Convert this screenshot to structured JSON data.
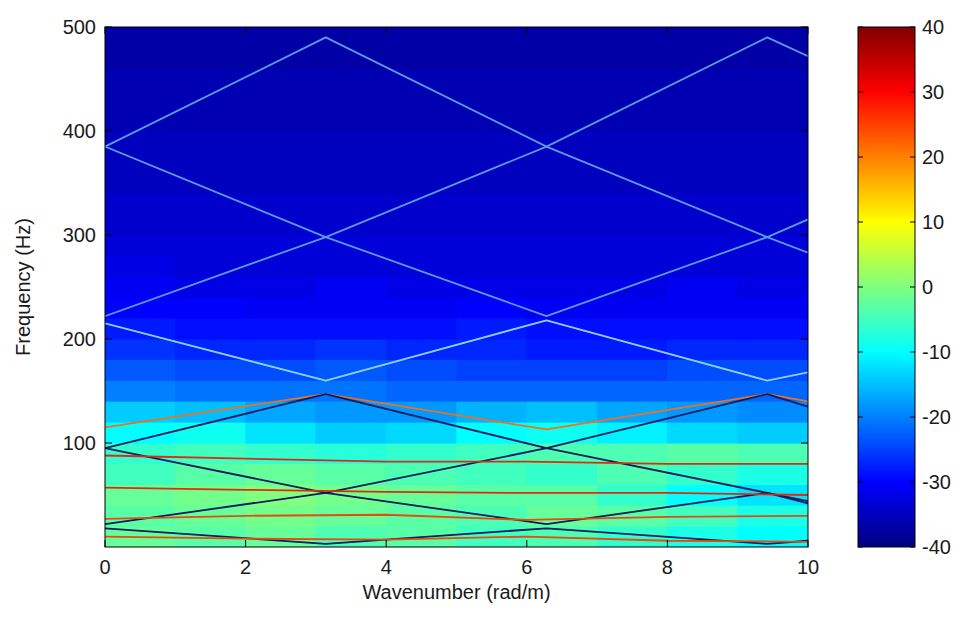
{
  "chart_data": {
    "type": "heatmap",
    "x_label": "Wavenumber (rad/m)",
    "y_label": "Frequency (Hz)",
    "xlim": [
      0,
      10
    ],
    "ylim": [
      0,
      500
    ],
    "xticks": [
      0,
      2,
      4,
      6,
      8,
      10
    ],
    "yticks": [
      100,
      200,
      300,
      400,
      500
    ],
    "cell_x": [
      0,
      1,
      2,
      3,
      4,
      5,
      6,
      7,
      8,
      9,
      10
    ],
    "cell_y": [
      0,
      20,
      40,
      60,
      80,
      100,
      120,
      140,
      160,
      180,
      200,
      220,
      240,
      260,
      280,
      300,
      320,
      340,
      360,
      380,
      400,
      420,
      440,
      460,
      480,
      500
    ],
    "cells": [
      [
        -2,
        -3,
        -2,
        -4,
        -3,
        -5,
        -4,
        -6,
        -8,
        -10
      ],
      [
        -3,
        -2,
        -1,
        -2,
        -3,
        -4,
        -2,
        -3,
        -5,
        -8
      ],
      [
        -2,
        -1,
        0,
        -1,
        -2,
        -3,
        -3,
        -6,
        -10,
        -12
      ],
      [
        -5,
        -3,
        -2,
        -3,
        -4,
        -5,
        -6,
        -4,
        -6,
        -8
      ],
      [
        -6,
        -5,
        -6,
        -7,
        -6,
        -5,
        -4,
        -4,
        -3,
        -4
      ],
      [
        -10,
        -9,
        -12,
        -14,
        -13,
        -10,
        -9,
        -11,
        -13,
        -14
      ],
      [
        -14,
        -15,
        -17,
        -18,
        -18,
        -16,
        -15,
        -17,
        -18,
        -19
      ],
      [
        -20,
        -21,
        -21,
        -21,
        -22,
        -22,
        -22,
        -22,
        -22,
        -22
      ],
      [
        -23,
        -24,
        -24,
        -23,
        -24,
        -25,
        -25,
        -25,
        -24,
        -24
      ],
      [
        -26,
        -27,
        -27,
        -26,
        -27,
        -27,
        -28,
        -28,
        -27,
        -27
      ],
      [
        -28,
        -29,
        -29,
        -29,
        -29,
        -28,
        -29,
        -29,
        -29,
        -29
      ],
      [
        -30,
        -30,
        -31,
        -31,
        -31,
        -30,
        -31,
        -31,
        -31,
        -31
      ],
      [
        -31,
        -32,
        -32,
        -31,
        -32,
        -32,
        -32,
        -32,
        -31,
        -32
      ],
      [
        -32,
        -33,
        -33,
        -33,
        -33,
        -33,
        -33,
        -33,
        -33,
        -33
      ],
      [
        -33,
        -33,
        -33,
        -33,
        -33,
        -33,
        -33,
        -33,
        -33,
        -33
      ],
      [
        -34,
        -34,
        -34,
        -34,
        -34,
        -34,
        -34,
        -34,
        -34,
        -34
      ],
      [
        -34,
        -34,
        -34,
        -34,
        -34,
        -34,
        -34,
        -34,
        -34,
        -34
      ],
      [
        -35,
        -35,
        -35,
        -35,
        -35,
        -35,
        -35,
        -35,
        -35,
        -35
      ],
      [
        -35,
        -35,
        -35,
        -35,
        -35,
        -35,
        -35,
        -35,
        -35,
        -35
      ],
      [
        -35,
        -35,
        -35,
        -35,
        -35,
        -35,
        -35,
        -35,
        -35,
        -35
      ],
      [
        -36,
        -36,
        -36,
        -36,
        -36,
        -36,
        -36,
        -36,
        -36,
        -36
      ],
      [
        -36,
        -36,
        -36,
        -36,
        -36,
        -36,
        -36,
        -36,
        -36,
        -36
      ],
      [
        -36,
        -36,
        -36,
        -36,
        -36,
        -36,
        -36,
        -36,
        -36,
        -36
      ],
      [
        -37,
        -37,
        -37,
        -37,
        -37,
        -37,
        -37,
        -37,
        -37,
        -37
      ],
      [
        -37,
        -37,
        -37,
        -37,
        -37,
        -37,
        -37,
        -37,
        -37,
        -37
      ]
    ],
    "colorbar": {
      "range": [
        -40,
        40
      ],
      "ticks": [
        -40,
        -30,
        -20,
        -10,
        0,
        10,
        20,
        30,
        40
      ]
    },
    "series": [
      {
        "type": "line",
        "color": "#5a9ae6",
        "x": [
          0,
          3.14,
          6.28,
          9.42,
          10
        ],
        "values": [
          385,
          298,
          385,
          298,
          315
        ]
      },
      {
        "type": "line",
        "color": "#5a9ae6",
        "x": [
          0,
          3.14,
          6.28,
          9.42,
          10
        ],
        "values": [
          385,
          490,
          385,
          490,
          472
        ]
      },
      {
        "type": "line",
        "color": "#5a9ae6",
        "x": [
          0,
          3.14,
          6.28,
          9.42,
          10
        ],
        "values": [
          222,
          298,
          222,
          298,
          283
        ]
      },
      {
        "type": "line",
        "color": "#8fd0f0",
        "x": [
          0,
          3.14,
          6.28,
          9.42,
          10
        ],
        "values": [
          215,
          160,
          218,
          160,
          168
        ]
      },
      {
        "type": "line",
        "color": "#f07020",
        "x": [
          0,
          3.14,
          6.28,
          9.42,
          10
        ],
        "values": [
          115,
          147,
          113,
          147,
          140
        ]
      },
      {
        "type": "line",
        "color": "#0c1a60",
        "x": [
          0,
          3.14,
          6.28,
          9.42,
          10
        ],
        "values": [
          95,
          147,
          95,
          147,
          135
        ]
      },
      {
        "type": "line",
        "color": "#0c1a60",
        "x": [
          0,
          3.14,
          6.28,
          9.42,
          10
        ],
        "values": [
          95,
          52,
          95,
          52,
          42
        ]
      },
      {
        "type": "line",
        "color": "#0c1a60",
        "x": [
          0,
          3.14,
          6.28,
          9.42,
          10
        ],
        "values": [
          22,
          52,
          22,
          52,
          44
        ]
      },
      {
        "type": "line",
        "color": "#0c1a60",
        "x": [
          0,
          3.14,
          6.28,
          9.42,
          10
        ],
        "values": [
          18,
          3,
          18,
          3,
          6
        ]
      },
      {
        "type": "line",
        "color": "#e02a10",
        "x": [
          0,
          2,
          4,
          6,
          8,
          10
        ],
        "values": [
          88,
          85,
          82,
          82,
          80,
          80
        ]
      },
      {
        "type": "line",
        "color": "#e02a10",
        "x": [
          0,
          2,
          4,
          6,
          8,
          10
        ],
        "values": [
          57,
          55,
          53,
          52,
          52,
          50
        ]
      },
      {
        "type": "line",
        "color": "#e84a10",
        "x": [
          0,
          2,
          4,
          6,
          8,
          10
        ],
        "values": [
          27,
          30,
          31,
          26,
          29,
          30
        ]
      },
      {
        "type": "line",
        "color": "#e84a10",
        "x": [
          0,
          2,
          4,
          6,
          8,
          10
        ],
        "values": [
          10,
          8,
          7,
          10,
          6,
          5
        ]
      }
    ]
  }
}
